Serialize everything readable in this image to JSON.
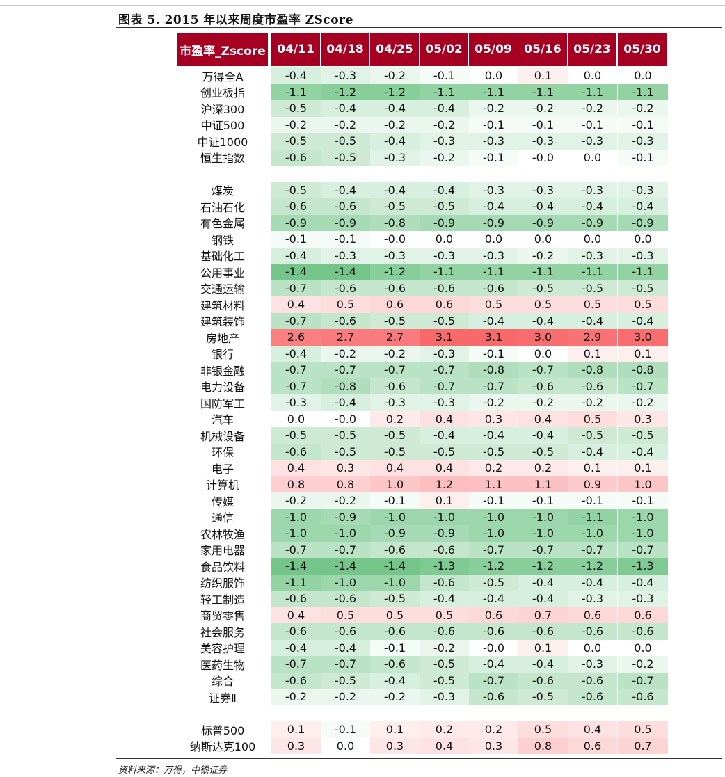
{
  "title": "图表  5. 2015 年以来周度市盈率 ZScore",
  "source": "资料来源：万得，中银证券",
  "table": {
    "corner_header": "市盈率_Zscore",
    "columns": [
      "04/11",
      "04/18",
      "04/25",
      "05/02",
      "05/09",
      "05/16",
      "05/23",
      "05/30"
    ],
    "groups": [
      [
        {
          "name": "万得全A",
          "values": [
            "-0.4",
            "-0.3",
            "-0.2",
            "-0.1",
            "0.0",
            "0.1",
            "0.0",
            "0.0"
          ]
        },
        {
          "name": "创业板指",
          "values": [
            "-1.1",
            "-1.2",
            "-1.2",
            "-1.1",
            "-1.1",
            "-1.1",
            "-1.1",
            "-1.1"
          ]
        },
        {
          "name": "沪深300",
          "values": [
            "-0.5",
            "-0.4",
            "-0.4",
            "-0.4",
            "-0.2",
            "-0.2",
            "-0.2",
            "-0.2"
          ]
        },
        {
          "name": "中证500",
          "values": [
            "-0.2",
            "-0.2",
            "-0.2",
            "-0.2",
            "-0.1",
            "-0.1",
            "-0.1",
            "-0.1"
          ]
        },
        {
          "name": "中证1000",
          "values": [
            "-0.5",
            "-0.5",
            "-0.4",
            "-0.3",
            "-0.3",
            "-0.3",
            "-0.3",
            "-0.3"
          ]
        },
        {
          "name": "恒生指数",
          "values": [
            "-0.6",
            "-0.5",
            "-0.3",
            "-0.2",
            "-0.1",
            "-0.0",
            "0.0",
            "-0.1"
          ]
        }
      ],
      [
        {
          "name": "煤炭",
          "values": [
            "-0.5",
            "-0.4",
            "-0.4",
            "-0.4",
            "-0.3",
            "-0.3",
            "-0.3",
            "-0.3"
          ]
        },
        {
          "name": "石油石化",
          "values": [
            "-0.6",
            "-0.6",
            "-0.5",
            "-0.5",
            "-0.4",
            "-0.4",
            "-0.4",
            "-0.4"
          ]
        },
        {
          "name": "有色金属",
          "values": [
            "-0.9",
            "-0.9",
            "-0.8",
            "-0.9",
            "-0.9",
            "-0.9",
            "-0.9",
            "-0.9"
          ]
        },
        {
          "name": "钢铁",
          "values": [
            "-0.1",
            "-0.1",
            "-0.0",
            "0.0",
            "0.0",
            "0.0",
            "0.0",
            "0.0"
          ]
        },
        {
          "name": "基础化工",
          "values": [
            "-0.4",
            "-0.3",
            "-0.3",
            "-0.3",
            "-0.3",
            "-0.2",
            "-0.3",
            "-0.3"
          ]
        },
        {
          "name": "公用事业",
          "values": [
            "-1.4",
            "-1.4",
            "-1.2",
            "-1.1",
            "-1.1",
            "-1.1",
            "-1.1",
            "-1.1"
          ]
        },
        {
          "name": "交通运输",
          "values": [
            "-0.7",
            "-0.6",
            "-0.6",
            "-0.6",
            "-0.6",
            "-0.5",
            "-0.5",
            "-0.5"
          ]
        },
        {
          "name": "建筑材料",
          "values": [
            "0.4",
            "0.5",
            "0.6",
            "0.6",
            "0.5",
            "0.5",
            "0.5",
            "0.5"
          ]
        },
        {
          "name": "建筑装饰",
          "values": [
            "-0.7",
            "-0.6",
            "-0.5",
            "-0.5",
            "-0.4",
            "-0.4",
            "-0.4",
            "-0.4"
          ]
        },
        {
          "name": "房地产",
          "values": [
            "2.6",
            "2.7",
            "2.7",
            "3.1",
            "3.1",
            "3.0",
            "2.9",
            "3.0"
          ]
        },
        {
          "name": "银行",
          "values": [
            "-0.4",
            "-0.2",
            "-0.2",
            "-0.3",
            "-0.1",
            "0.0",
            "0.1",
            "0.1"
          ]
        },
        {
          "name": "非银金融",
          "values": [
            "-0.7",
            "-0.7",
            "-0.7",
            "-0.7",
            "-0.8",
            "-0.7",
            "-0.8",
            "-0.8"
          ]
        },
        {
          "name": "电力设备",
          "values": [
            "-0.7",
            "-0.8",
            "-0.6",
            "-0.7",
            "-0.7",
            "-0.6",
            "-0.6",
            "-0.7"
          ]
        },
        {
          "name": "国防军工",
          "values": [
            "-0.3",
            "-0.4",
            "-0.3",
            "-0.3",
            "-0.2",
            "-0.2",
            "-0.2",
            "-0.2"
          ]
        },
        {
          "name": "汽车",
          "values": [
            "0.0",
            "-0.0",
            "0.2",
            "0.4",
            "0.3",
            "0.4",
            "0.5",
            "0.3"
          ]
        },
        {
          "name": "机械设备",
          "values": [
            "-0.5",
            "-0.5",
            "-0.5",
            "-0.4",
            "-0.4",
            "-0.4",
            "-0.5",
            "-0.5"
          ]
        },
        {
          "name": "环保",
          "values": [
            "-0.6",
            "-0.5",
            "-0.5",
            "-0.5",
            "-0.5",
            "-0.5",
            "-0.4",
            "-0.4"
          ]
        },
        {
          "name": "电子",
          "values": [
            "0.4",
            "0.3",
            "0.4",
            "0.4",
            "0.2",
            "0.2",
            "0.1",
            "0.1"
          ]
        },
        {
          "name": "计算机",
          "values": [
            "0.8",
            "0.8",
            "1.0",
            "1.2",
            "1.1",
            "1.1",
            "0.9",
            "1.0"
          ]
        },
        {
          "name": "传媒",
          "values": [
            "-0.2",
            "-0.2",
            "-0.1",
            "0.1",
            "-0.1",
            "-0.1",
            "-0.1",
            "-0.1"
          ]
        },
        {
          "name": "通信",
          "values": [
            "-1.0",
            "-0.9",
            "-1.0",
            "-1.0",
            "-1.0",
            "-1.0",
            "-1.1",
            "-1.0"
          ]
        },
        {
          "name": "农林牧渔",
          "values": [
            "-1.0",
            "-1.0",
            "-0.9",
            "-0.9",
            "-1.0",
            "-1.0",
            "-1.0",
            "-1.0"
          ]
        },
        {
          "name": "家用电器",
          "values": [
            "-0.7",
            "-0.7",
            "-0.6",
            "-0.6",
            "-0.7",
            "-0.7",
            "-0.7",
            "-0.7"
          ]
        },
        {
          "name": "食品饮料",
          "values": [
            "-1.4",
            "-1.4",
            "-1.4",
            "-1.3",
            "-1.2",
            "-1.2",
            "-1.2",
            "-1.3"
          ]
        },
        {
          "name": "纺织服饰",
          "values": [
            "-1.1",
            "-1.0",
            "-1.0",
            "-0.6",
            "-0.5",
            "-0.4",
            "-0.4",
            "-0.4"
          ]
        },
        {
          "name": "轻工制造",
          "values": [
            "-0.6",
            "-0.6",
            "-0.5",
            "-0.4",
            "-0.4",
            "-0.4",
            "-0.3",
            "-0.3"
          ]
        },
        {
          "name": "商贸零售",
          "values": [
            "0.4",
            "0.5",
            "0.5",
            "0.5",
            "0.6",
            "0.7",
            "0.6",
            "0.6"
          ]
        },
        {
          "name": "社会服务",
          "values": [
            "-0.6",
            "-0.6",
            "-0.6",
            "-0.6",
            "-0.6",
            "-0.6",
            "-0.6",
            "-0.6"
          ]
        },
        {
          "name": "美容护理",
          "values": [
            "-0.4",
            "-0.4",
            "-0.1",
            "-0.2",
            "-0.0",
            "0.1",
            "0.0",
            "0.0"
          ]
        },
        {
          "name": "医药生物",
          "values": [
            "-0.7",
            "-0.7",
            "-0.6",
            "-0.5",
            "-0.4",
            "-0.4",
            "-0.3",
            "-0.2"
          ]
        },
        {
          "name": "综合",
          "values": [
            "-0.6",
            "-0.5",
            "-0.4",
            "-0.5",
            "-0.7",
            "-0.6",
            "-0.6",
            "-0.7"
          ]
        },
        {
          "name": "证券Ⅱ",
          "values": [
            "-0.2",
            "-0.2",
            "-0.2",
            "-0.3",
            "-0.6",
            "-0.5",
            "-0.6",
            "-0.6"
          ]
        }
      ],
      [
        {
          "name": "标普500",
          "values": [
            "0.1",
            "-0.1",
            "0.1",
            "0.2",
            "0.2",
            "0.5",
            "0.4",
            "0.5"
          ]
        },
        {
          "name": "纳斯达克100",
          "values": [
            "0.3",
            "0.0",
            "0.3",
            "0.4",
            "0.3",
            "0.8",
            "0.6",
            "0.7"
          ]
        }
      ]
    ]
  },
  "colors": {
    "header_bg": "#a50021",
    "header_text": "#ffffff",
    "negative_max": "#63be7b",
    "positive_max": "#f8696b",
    "neutral": "#ffffff"
  }
}
